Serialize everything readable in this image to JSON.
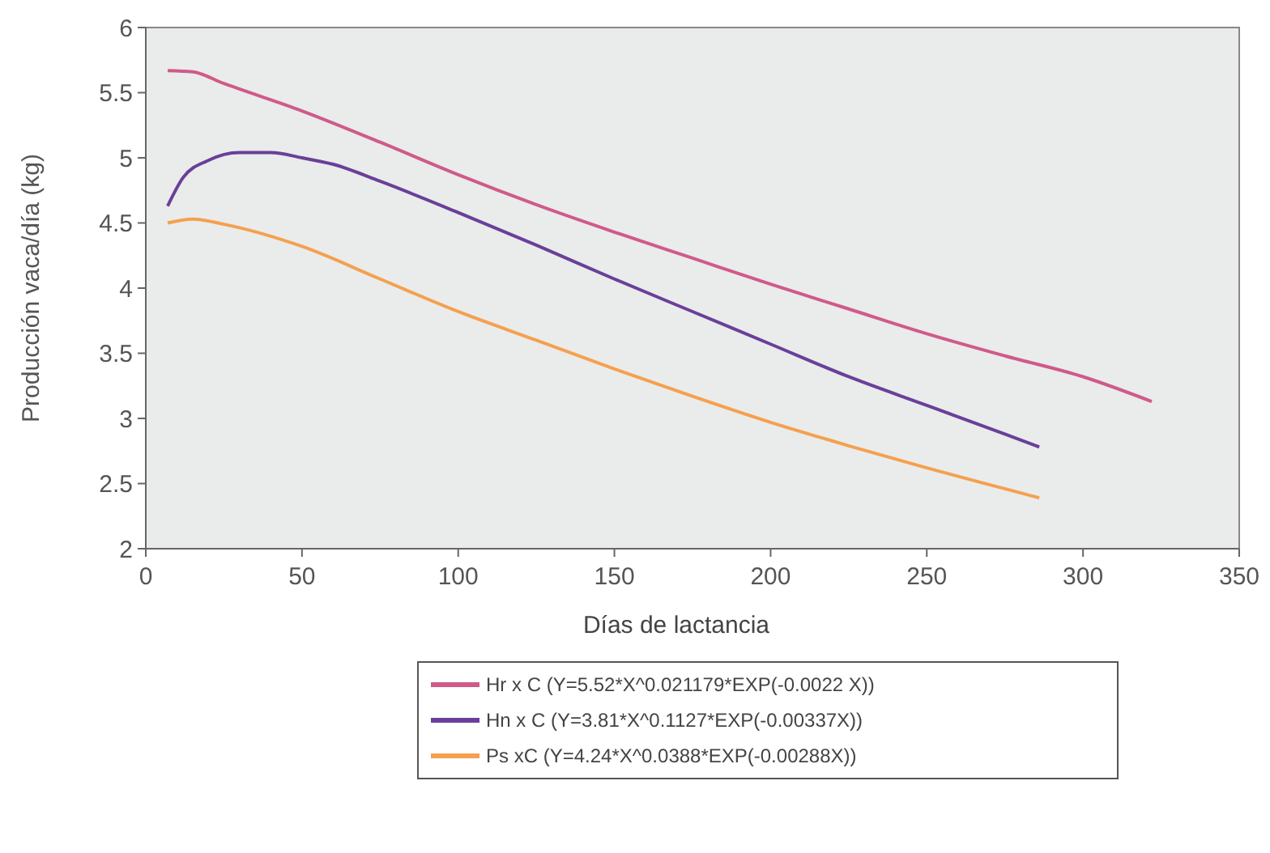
{
  "chart_data": {
    "type": "line",
    "xlabel": "Días de lactancia",
    "ylabel": "Producción vaca/día (kg)",
    "xlim": [
      0,
      350
    ],
    "xticks": [
      0,
      50,
      100,
      150,
      200,
      250,
      300,
      350
    ],
    "ylim": [
      2,
      6
    ],
    "yticks": [
      2,
      2.5,
      3,
      3.5,
      4,
      4.5,
      5,
      5.5,
      6
    ],
    "grid": false,
    "legend": "bottom",
    "marker": "none",
    "line_style": "solid",
    "series": [
      {
        "name": "Hr x C (Y=5.52*X^0.021179*EXP(-0.0022 X))",
        "color": "#d05a8a",
        "x": [
          7,
          15,
          25,
          50,
          75,
          100,
          125,
          150,
          175,
          200,
          225,
          250,
          275,
          300,
          322
        ],
        "values": [
          5.67,
          5.66,
          5.57,
          5.36,
          5.12,
          4.87,
          4.64,
          4.43,
          4.23,
          4.03,
          3.84,
          3.65,
          3.48,
          3.32,
          3.13
        ]
      },
      {
        "name": "Hn x C (Y=3.81*X^0.1127*EXP(-0.00337X))",
        "color": "#6a3f9a",
        "x": [
          7,
          12,
          20,
          30,
          40,
          50,
          60,
          75,
          100,
          125,
          150,
          175,
          200,
          225,
          250,
          275,
          286
        ],
        "values": [
          4.63,
          4.85,
          4.98,
          5.04,
          5.04,
          5.0,
          4.95,
          4.82,
          4.58,
          4.33,
          4.07,
          3.82,
          3.57,
          3.32,
          3.1,
          2.88,
          2.78
        ]
      },
      {
        "name": "Ps xC (Y=4.24*X^0.0388*EXP(-0.00288X))",
        "color": "#f5a050",
        "x": [
          7,
          15,
          25,
          50,
          75,
          100,
          125,
          150,
          175,
          200,
          225,
          250,
          275,
          286
        ],
        "values": [
          4.5,
          4.53,
          4.49,
          4.32,
          4.07,
          3.82,
          3.6,
          3.38,
          3.17,
          2.97,
          2.79,
          2.62,
          2.46,
          2.39
        ]
      }
    ]
  }
}
